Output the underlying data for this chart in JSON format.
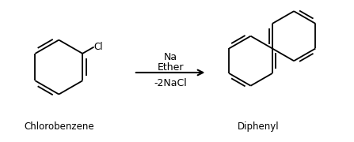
{
  "bg_color": "#ffffff",
  "line_color": "#000000",
  "text_color": "#000000",
  "label_fontsize": 8.5,
  "reagent_fontsize": 9,
  "arrow_above": "Na",
  "arrow_middle": "Ether",
  "arrow_below": "-2NaCl",
  "left_label": "Chlorobenzene",
  "right_label": "Diphenyl",
  "cl_label": "Cl",
  "figsize": [
    4.47,
    1.8
  ],
  "dpi": 100
}
